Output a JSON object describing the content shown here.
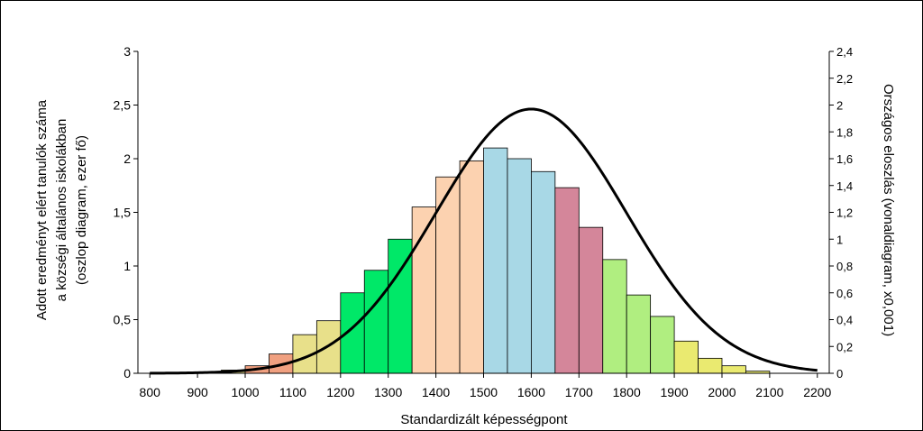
{
  "chart_data": {
    "type": "bar",
    "title": "",
    "xlabel": "Standardizált képességpont",
    "ylabel_lines": [
      "Adott eredményt elért tanulók száma",
      "a községi általános iskolákban",
      "(oszlop diagram, ezer fő)"
    ],
    "y2label": "Országos eloszlás (vonaldiagram, x0,001)",
    "xlim": [
      775,
      2225
    ],
    "ylim": [
      0,
      3
    ],
    "y2lim": [
      0,
      2.4
    ],
    "x_ticks": [
      "800",
      "900",
      "1000",
      "1100",
      "1200",
      "1300",
      "1400",
      "1500",
      "1600",
      "1700",
      "1800",
      "1900",
      "2000",
      "2100",
      "2200"
    ],
    "y_ticks": [
      "0",
      "0,5",
      "1",
      "1,5",
      "2",
      "2,5",
      "3"
    ],
    "y2_ticks": [
      "0",
      "0,2",
      "0,4",
      "0,6",
      "0,8",
      "1",
      "1,2",
      "1,4",
      "1,6",
      "1,8",
      "2",
      "2,2",
      "2,4"
    ],
    "grid": false,
    "bar_width": 50,
    "bars": [
      {
        "x": 800,
        "value": 0.0,
        "color": "#e8e08a"
      },
      {
        "x": 850,
        "value": 0.0,
        "color": "#e8e08a"
      },
      {
        "x": 900,
        "value": 0.0,
        "color": "#e8e08a"
      },
      {
        "x": 950,
        "value": 0.03,
        "color": "#e8e08a"
      },
      {
        "x": 1000,
        "value": 0.07,
        "color": "#f0a080"
      },
      {
        "x": 1050,
        "value": 0.18,
        "color": "#f0a080"
      },
      {
        "x": 1100,
        "value": 0.36,
        "color": "#e8e08a"
      },
      {
        "x": 1150,
        "value": 0.49,
        "color": "#e8e08a"
      },
      {
        "x": 1200,
        "value": 0.75,
        "color": "#00e868"
      },
      {
        "x": 1250,
        "value": 0.96,
        "color": "#00e868"
      },
      {
        "x": 1300,
        "value": 1.25,
        "color": "#00e868"
      },
      {
        "x": 1350,
        "value": 1.55,
        "color": "#fcd2b0"
      },
      {
        "x": 1400,
        "value": 1.83,
        "color": "#fcd2b0"
      },
      {
        "x": 1450,
        "value": 1.98,
        "color": "#fcd2b0"
      },
      {
        "x": 1500,
        "value": 2.1,
        "color": "#a8d8e6"
      },
      {
        "x": 1550,
        "value": 2.0,
        "color": "#a8d8e6"
      },
      {
        "x": 1600,
        "value": 1.88,
        "color": "#a8d8e6"
      },
      {
        "x": 1650,
        "value": 1.73,
        "color": "#d4869a"
      },
      {
        "x": 1700,
        "value": 1.36,
        "color": "#d4869a"
      },
      {
        "x": 1750,
        "value": 1.06,
        "color": "#b0ee80"
      },
      {
        "x": 1800,
        "value": 0.73,
        "color": "#b0ee80"
      },
      {
        "x": 1850,
        "value": 0.53,
        "color": "#b0ee80"
      },
      {
        "x": 1900,
        "value": 0.3,
        "color": "#eaea70"
      },
      {
        "x": 1950,
        "value": 0.14,
        "color": "#eaea70"
      },
      {
        "x": 2000,
        "value": 0.07,
        "color": "#eaea70"
      },
      {
        "x": 2050,
        "value": 0.02,
        "color": "#eaea70"
      },
      {
        "x": 2100,
        "value": 0.0,
        "color": "#eaea70"
      },
      {
        "x": 2150,
        "value": 0.0,
        "color": "#eaea70"
      }
    ],
    "distribution_curve": {
      "axis": "secondary",
      "mean": 1600,
      "sd": 200,
      "peak": 1.97,
      "x_range": [
        800,
        2200
      ],
      "color": "#000000"
    }
  }
}
